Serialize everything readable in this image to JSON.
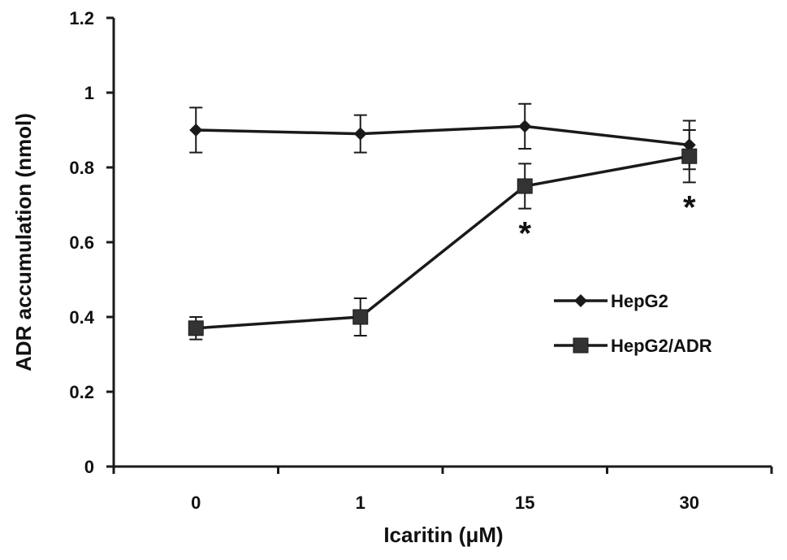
{
  "chart_data": {
    "type": "line",
    "categories": [
      "0",
      "1",
      "15",
      "30"
    ],
    "xlabel": "Icaritin (μM)",
    "ylabel": "ADR accumulation (nmol)",
    "ylim": [
      0,
      1.2
    ],
    "yticks": [
      "0",
      "0.2",
      "0.4",
      "0.6",
      "0.8",
      "1",
      "1.2"
    ],
    "grid": false,
    "legend_position": "right",
    "series": [
      {
        "name": "HepG2",
        "marker": "diamond",
        "values": [
          0.9,
          0.89,
          0.91,
          0.86
        ],
        "errors": [
          0.06,
          0.05,
          0.06,
          0.065
        ]
      },
      {
        "name": "HepG2/ADR",
        "marker": "square",
        "values": [
          0.37,
          0.4,
          0.75,
          0.83
        ],
        "errors": [
          0.03,
          0.05,
          0.06,
          0.07
        ]
      }
    ],
    "annotations": [
      {
        "text": "*",
        "category": "15",
        "series": "HepG2/ADR"
      },
      {
        "text": "*",
        "category": "30",
        "series": "HepG2/ADR"
      }
    ],
    "line_color": "#1a1a1a"
  }
}
